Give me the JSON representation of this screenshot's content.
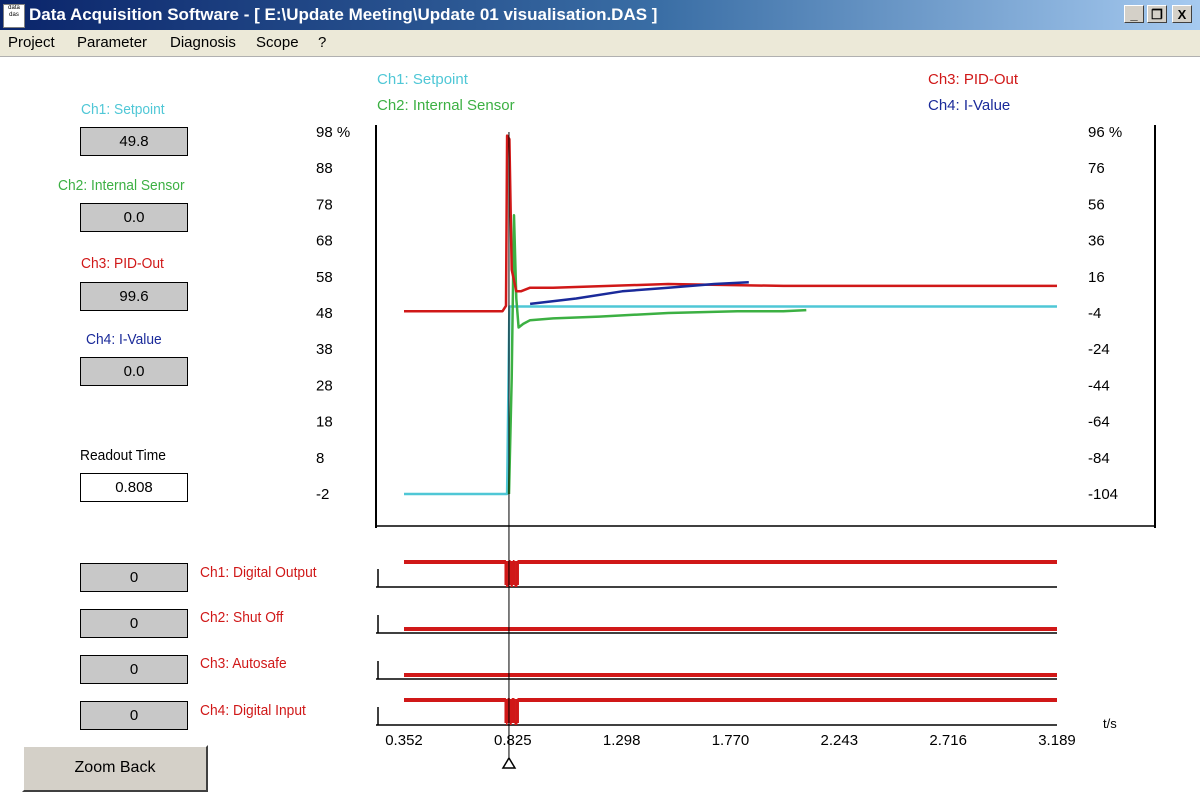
{
  "window": {
    "title": "Data Acquisition Software - [ E:\\Update Meeting\\Update 01 visualisation.DAS ]",
    "icon_text": "data das",
    "minimize": "_",
    "restore": "❐",
    "close": "X"
  },
  "menu": [
    "Project",
    "Parameter",
    "Diagnosis",
    "Scope",
    "?"
  ],
  "analog_channels": [
    {
      "label": "Ch1: Setpoint",
      "value": "49.8",
      "color": "#4fc7d6"
    },
    {
      "label": "Ch2: Internal Sensor",
      "value": "0.0",
      "color": "#3cb043"
    },
    {
      "label": "Ch3: PID-Out",
      "value": "99.6",
      "color": "#d01818"
    },
    {
      "label": "Ch4: I-Value",
      "value": "0.0",
      "color": "#1a2a9a"
    }
  ],
  "readout": {
    "label": "Readout Time",
    "value": "0.808"
  },
  "digital_channels": [
    {
      "label": "Ch1: Digital Output",
      "value": "0"
    },
    {
      "label": "Ch2: Shut Off",
      "value": "0"
    },
    {
      "label": "Ch3: Autosafe",
      "value": "0"
    },
    {
      "label": "Ch4: Digital Input",
      "value": "0"
    }
  ],
  "zoom_back_label": "Zoom Back",
  "chart_data": {
    "type": "line",
    "legend": {
      "left": [
        "Ch1: Setpoint",
        "Ch2: Internal Sensor"
      ],
      "right": [
        "Ch3: PID-Out",
        "Ch4: I-Value"
      ]
    },
    "left_axis": {
      "ticks": [
        "98 %",
        "88",
        "78",
        "68",
        "58",
        "48",
        "38",
        "28",
        "18",
        "8",
        "-2"
      ],
      "range": [
        -2,
        98
      ],
      "unit": "%"
    },
    "right_axis": {
      "ticks": [
        "96 %",
        "76",
        "56",
        "36",
        "16",
        "-4",
        "-24",
        "-44",
        "-64",
        "-84",
        "-104"
      ],
      "range": [
        -104,
        96
      ],
      "unit": "%"
    },
    "x_axis": {
      "ticks": [
        "0.352",
        "0.825",
        "1.298",
        "1.770",
        "2.243",
        "2.716",
        "3.189"
      ],
      "range": [
        0.352,
        3.189
      ],
      "unit_label": "t/s"
    },
    "cursor_time": 0.808,
    "series": [
      {
        "name": "Ch1: Setpoint",
        "color": "#4fc7d6",
        "x": [
          0.352,
          0.8,
          0.81,
          3.189
        ],
        "y": [
          -2,
          -2,
          49.8,
          49.8
        ]
      },
      {
        "name": "Ch2: Internal Sensor",
        "color": "#3cb043",
        "x": [
          0.808,
          0.82,
          0.83,
          0.84,
          0.85,
          0.87,
          0.9,
          1.0,
          1.2,
          1.5,
          1.8,
          2.0,
          2.1
        ],
        "y": [
          -2,
          30,
          75,
          52,
          44,
          45,
          46,
          46.5,
          47,
          48,
          48.5,
          48.5,
          48.8
        ]
      },
      {
        "name": "Ch3: PID-Out",
        "color": "#d01818",
        "x": [
          0.352,
          0.78,
          0.795,
          0.8,
          0.81,
          0.82,
          0.84,
          0.86,
          0.9,
          1.0,
          1.5,
          2.0,
          2.5,
          3.189
        ],
        "y": [
          48.5,
          48.5,
          50,
          97,
          96,
          60,
          54,
          54,
          55,
          55,
          56,
          55.5,
          55.5,
          55.5
        ]
      },
      {
        "name": "Ch4: I-Value",
        "color": "#1a2a9a",
        "x": [
          0.9,
          1.1,
          1.3,
          1.5,
          1.7,
          1.85
        ],
        "y": [
          1,
          4,
          8,
          10,
          12,
          13
        ]
      }
    ],
    "digital_series": [
      {
        "name": "Ch1: Digital Output",
        "high": [
          [
            0.352,
            0.795
          ],
          [
            0.808,
            0.815
          ],
          [
            0.825,
            0.832
          ],
          [
            0.845,
            3.189
          ]
        ]
      },
      {
        "name": "Ch2: Shut Off",
        "high": []
      },
      {
        "name": "Ch3: Autosafe",
        "high": []
      },
      {
        "name": "Ch4: Digital Input",
        "high": [
          [
            0.352,
            0.795
          ],
          [
            0.802,
            0.812
          ],
          [
            0.82,
            0.832
          ],
          [
            0.845,
            3.189
          ]
        ]
      }
    ]
  }
}
